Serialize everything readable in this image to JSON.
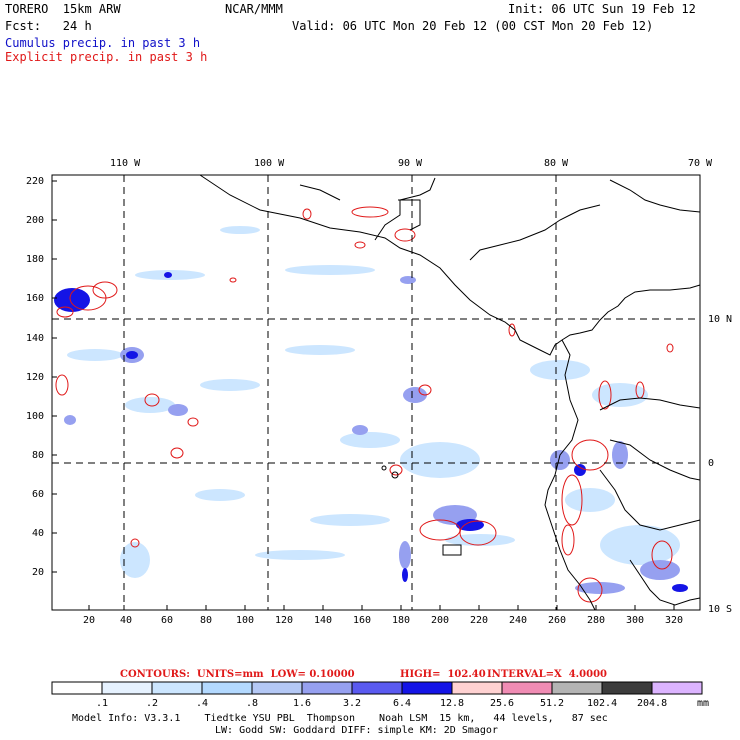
{
  "header": {
    "model": "TORERO  15km ARW",
    "org": "NCAR/MMM",
    "init": "Init: 06 UTC Sun 19 Feb 12",
    "fcst": "Fcst:   24 h",
    "valid": "Valid: 06 UTC Mon 20 Feb 12 (00 CST Mon 20 Feb 12)",
    "cumulus": "Cumulus precip. in past 3 h",
    "explicit": "Explicit precip. in past 3 h"
  },
  "axes": {
    "top_lon": [
      "110 W",
      "100 W",
      "90 W",
      "80 W",
      "70 W"
    ],
    "right_lat": [
      "10 N",
      "0",
      "10 S"
    ],
    "y_ticks": [
      "220",
      "200",
      "180",
      "160",
      "140",
      "120",
      "100",
      "80",
      "60",
      "40",
      "20"
    ],
    "x_ticks": [
      "20",
      "40",
      "60",
      "80",
      "100",
      "120",
      "140",
      "160",
      "180",
      "200",
      "220",
      "240",
      "260",
      "280",
      "300",
      "320"
    ]
  },
  "contours_line": {
    "contours": "CONTOURS:  UNITS=mm  LOW= 0.10000",
    "high": "HIGH=  102.40",
    "interval": "INTERVAL=X  4.0000"
  },
  "colorbar": {
    "labels": [
      ".1",
      ".2",
      ".4",
      ".8",
      "1.6",
      "3.2",
      "6.4",
      "12.8",
      "25.6",
      "51.2",
      "102.4",
      "204.8"
    ],
    "unit": "mm",
    "colors": [
      "#ffffff",
      "#e6f2ff",
      "#cce6ff",
      "#b3d9ff",
      "#b4c8f5",
      "#96a0f0",
      "#5a5af0",
      "#1414e6",
      "#ffd2d2",
      "#f08cb4",
      "#b4b4b4",
      "#3c3c3c",
      "#dcb4ff"
    ]
  },
  "footer": {
    "line1": "Model Info: V3.3.1    Tiedtke YSU PBL  Thompson    Noah LSM  15 km,   44 levels,   87 sec",
    "line2": "LW: Godd SW: Goddard DIFF: simple KM: 2D Smagor"
  },
  "colors": {
    "cumulus": "#1010c8",
    "explicit": "#e01818"
  }
}
